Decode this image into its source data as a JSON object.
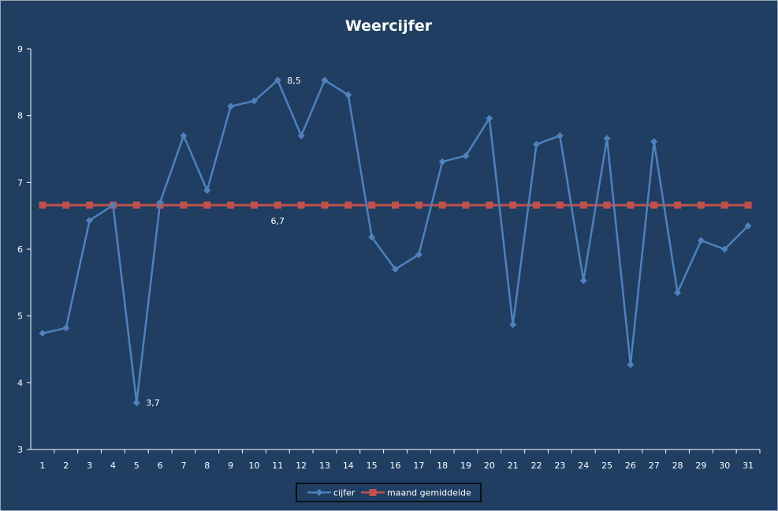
{
  "chart_data": {
    "type": "line",
    "title": "Weercijfer",
    "xlabel": "",
    "ylabel": "",
    "ylim": [
      3,
      9
    ],
    "yticks": [
      "3",
      "4",
      "5",
      "6",
      "7",
      "8",
      "9"
    ],
    "x": [
      "1",
      "2",
      "3",
      "4",
      "5",
      "6",
      "7",
      "8",
      "9",
      "10",
      "11",
      "12",
      "13",
      "14",
      "15",
      "16",
      "17",
      "18",
      "19",
      "20",
      "21",
      "22",
      "23",
      "24",
      "25",
      "26",
      "27",
      "28",
      "29",
      "30",
      "31"
    ],
    "series": [
      {
        "name": "cijfer",
        "color": "#4f81bd",
        "marker": "diamond",
        "values": [
          4.74,
          4.82,
          6.43,
          6.66,
          3.7,
          6.7,
          7.7,
          6.88,
          8.14,
          8.22,
          8.53,
          7.7,
          8.53,
          8.31,
          6.18,
          5.7,
          5.92,
          7.31,
          7.4,
          7.96,
          4.87,
          7.57,
          7.7,
          5.53,
          7.66,
          4.27,
          7.61,
          5.35,
          6.13,
          6.0,
          6.35
        ]
      },
      {
        "name": "maand gemiddelde",
        "color": "#c0504d",
        "marker": "square",
        "values": [
          6.66,
          6.66,
          6.66,
          6.66,
          6.66,
          6.66,
          6.66,
          6.66,
          6.66,
          6.66,
          6.66,
          6.66,
          6.66,
          6.66,
          6.66,
          6.66,
          6.66,
          6.66,
          6.66,
          6.66,
          6.66,
          6.66,
          6.66,
          6.66,
          6.66,
          6.66,
          6.66,
          6.66,
          6.66,
          6.66,
          6.66
        ]
      }
    ],
    "annotations": [
      {
        "series": 0,
        "index": 4,
        "text": "3,7"
      },
      {
        "series": 0,
        "index": 10,
        "text": "8,5"
      },
      {
        "series": 1,
        "index": 10,
        "text": "6,7"
      }
    ],
    "grid": false,
    "legend": "bottom",
    "background": "#1f3e62",
    "axis_color": "#ffffff"
  }
}
